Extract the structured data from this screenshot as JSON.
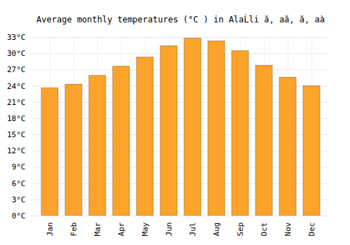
{
  "chart_data": {
    "type": "bar",
    "title": "Average monthly temperatures (°C ) in AlaĹli ă, aă, ă, aà",
    "categories": [
      "Jan",
      "Feb",
      "Mar",
      "Apr",
      "May",
      "Jun",
      "Jul",
      "Aug",
      "Sep",
      "Oct",
      "Nov",
      "Dec"
    ],
    "values": [
      23.6,
      24.3,
      25.9,
      27.6,
      29.3,
      31.4,
      32.8,
      32.3,
      30.5,
      27.8,
      25.6,
      24.0
    ],
    "color": "#fca32c",
    "ylim": [
      0,
      33
    ],
    "yticks": [
      {
        "value": 0,
        "label": "0°C"
      },
      {
        "value": 3,
        "label": "3°C"
      },
      {
        "value": 6,
        "label": "6°C"
      },
      {
        "value": 9,
        "label": "9°C"
      },
      {
        "value": 12,
        "label": "12°C"
      },
      {
        "value": 15,
        "label": "15°C"
      },
      {
        "value": 18,
        "label": "18°C"
      },
      {
        "value": 21,
        "label": "21°C"
      },
      {
        "value": 24,
        "label": "24°C"
      },
      {
        "value": 27,
        "label": "27°C"
      },
      {
        "value": 30,
        "label": "30°C"
      },
      {
        "value": 33,
        "label": "33°C"
      }
    ],
    "grid": true
  }
}
